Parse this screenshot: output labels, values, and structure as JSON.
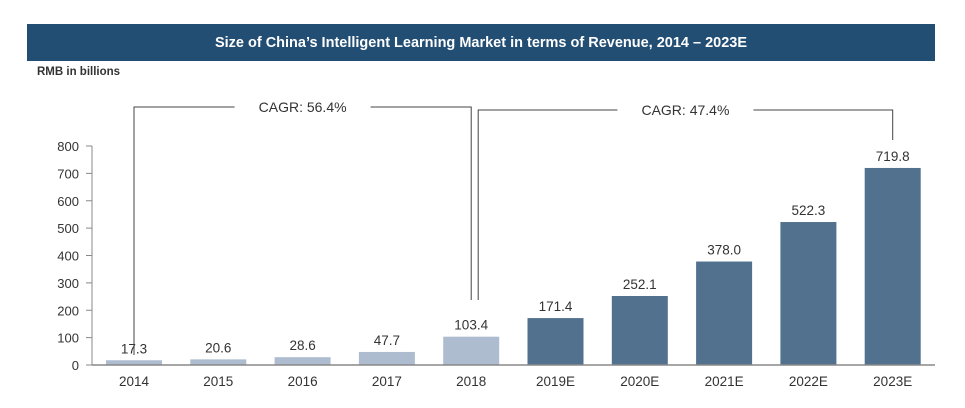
{
  "chart_data": {
    "type": "bar",
    "title": "Size of China’s Intelligent Learning Market in terms of Revenue, 2014 – 2023E",
    "ylabel": "RMB in billions",
    "xlabel": "",
    "categories": [
      "2014",
      "2015",
      "2016",
      "2017",
      "2018",
      "2019E",
      "2020E",
      "2021E",
      "2022E",
      "2023E"
    ],
    "values": [
      17.3,
      20.6,
      28.6,
      47.7,
      103.4,
      171.4,
      252.1,
      378.0,
      522.3,
      719.8
    ],
    "labels": [
      "17.3",
      "20.6",
      "28.6",
      "47.7",
      "103.4",
      "171.4",
      "252.1",
      "378.0",
      "522.3",
      "719.8"
    ],
    "ylim": [
      0,
      800
    ],
    "yticks": [
      0,
      100,
      200,
      300,
      400,
      500,
      600,
      700,
      800
    ],
    "grid": false,
    "colors": {
      "historical": "#adbdcf",
      "forecast": "#52718f",
      "title_bg": "#234e74"
    },
    "forecast_start_index": 5,
    "annotations": [
      {
        "text": "CAGR: 56.4%",
        "from": "2014",
        "to": "2018"
      },
      {
        "text": "CAGR: 47.4%",
        "from": "2018",
        "to": "2023E"
      }
    ]
  }
}
